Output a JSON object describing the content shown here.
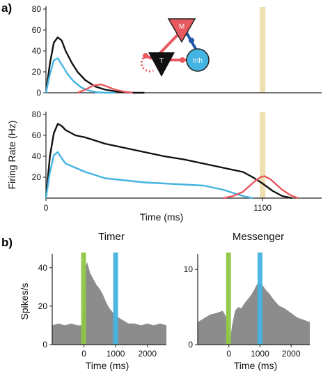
{
  "colors": {
    "black": "#111111",
    "blue": "#44b4e2",
    "red": "#e8585c",
    "tan": "#eee0b0",
    "green": "#8fc645",
    "gray": "#8c8c8c",
    "axis": "#222222"
  },
  "labels": {
    "panel_a": "a)",
    "panel_b": "b)",
    "ylabel_a": "Firing Rate (Hz)",
    "xlabel_a": "Time (ms)",
    "title_timer": "Timer",
    "title_messenger": "Messenger",
    "ylabel_b": "Spikes/s",
    "xlabel_timer": "Time (ms)",
    "xlabel_messenger": "Time (ms)"
  },
  "inset": {
    "node_m": "M",
    "node_t": "T",
    "node_inh": "Inh"
  },
  "chart_data": [
    {
      "type": "line",
      "id": "top",
      "ylabel": "Firing Rate (Hz)",
      "xlim": [
        0,
        1400
      ],
      "ylim": [
        0,
        80
      ],
      "yticks": [
        "0",
        "20",
        "40",
        "60",
        "80"
      ],
      "highlight_x": 1100,
      "series": [
        {
          "color": "black",
          "x": [
            0,
            20,
            40,
            60,
            80,
            100,
            130,
            160,
            200,
            250,
            300,
            350,
            400,
            450,
            500
          ],
          "y": [
            0,
            28,
            48,
            53,
            50,
            40,
            29,
            20,
            12,
            6,
            3,
            1.5,
            0.5,
            0,
            0
          ]
        },
        {
          "color": "blue",
          "x": [
            0,
            20,
            40,
            60,
            80,
            110,
            140,
            180,
            220,
            260,
            300,
            350
          ],
          "y": [
            0,
            18,
            31,
            33,
            27,
            18,
            11,
            5,
            2,
            0.5,
            0,
            0
          ]
        },
        {
          "color": "red",
          "x": [
            160,
            200,
            240,
            280,
            310,
            350,
            400,
            440
          ],
          "y": [
            0,
            3,
            7,
            8,
            6,
            3,
            1,
            0
          ]
        }
      ]
    },
    {
      "type": "line",
      "id": "bottom",
      "xlim": [
        0,
        1400
      ],
      "ylim": [
        0,
        80
      ],
      "yticks": [
        "20",
        "40",
        "60",
        "80"
      ],
      "xticks": [
        {
          "x": 0,
          "label": "0"
        },
        {
          "x": 1100,
          "label": "1100"
        }
      ],
      "highlight_x": 1100,
      "series": [
        {
          "color": "black",
          "x": [
            0,
            20,
            40,
            60,
            80,
            100,
            150,
            200,
            300,
            400,
            500,
            600,
            700,
            800,
            900,
            1000,
            1050,
            1100,
            1150,
            1200,
            1250
          ],
          "y": [
            0,
            40,
            62,
            71,
            69,
            65,
            60,
            58,
            52,
            48,
            44,
            40,
            37,
            33,
            29,
            25,
            20,
            14,
            7,
            2,
            0
          ]
        },
        {
          "color": "blue",
          "x": [
            0,
            20,
            40,
            60,
            80,
            100,
            150,
            200,
            300,
            400,
            500,
            600,
            700,
            800,
            900,
            950,
            1000,
            1050
          ],
          "y": [
            0,
            25,
            41,
            44,
            38,
            33,
            29,
            25,
            19,
            17,
            15,
            14,
            13,
            12,
            8,
            5,
            2,
            0
          ]
        },
        {
          "color": "red",
          "x": [
            900,
            950,
            1000,
            1030,
            1060,
            1090,
            1110,
            1140,
            1170,
            1200,
            1240,
            1280
          ],
          "y": [
            0,
            2,
            6,
            11,
            16,
            20,
            21,
            18,
            13,
            8,
            3,
            0
          ]
        }
      ]
    },
    {
      "type": "area",
      "id": "timer",
      "title": "Timer",
      "ylabel": "Spikes/s",
      "xlabel": "Time (ms)",
      "xlim": [
        -1000,
        2600
      ],
      "ylim": [
        0,
        45
      ],
      "yticks": [
        0,
        20,
        40
      ],
      "xticks": [
        0,
        1000,
        2000
      ],
      "green_x": 0,
      "blue_x": 1000,
      "x": [
        -1000,
        -800,
        -600,
        -400,
        -200,
        -50,
        0,
        50,
        100,
        150,
        200,
        300,
        400,
        500,
        600,
        700,
        800,
        900,
        1000,
        1100,
        1200,
        1300,
        1400,
        1600,
        1800,
        2000,
        2200,
        2400,
        2600
      ],
      "y": [
        10,
        11,
        10,
        11,
        10,
        10,
        24,
        40,
        43,
        40,
        37,
        34,
        31,
        29,
        26,
        22,
        19,
        17,
        15,
        14,
        13,
        12,
        11,
        11,
        10,
        11,
        10,
        11,
        10
      ]
    },
    {
      "type": "area",
      "id": "messenger",
      "title": "Messenger",
      "xlabel": "Time (ms)",
      "xlim": [
        -1000,
        2600
      ],
      "ylim": [
        0,
        11.5
      ],
      "yticks": [
        0,
        10
      ],
      "xticks": [
        0,
        1000,
        2000
      ],
      "green_x": 0,
      "blue_x": 1000,
      "x": [
        -1000,
        -800,
        -600,
        -400,
        -200,
        -100,
        0,
        50,
        100,
        200,
        300,
        400,
        500,
        600,
        700,
        800,
        900,
        1000,
        1100,
        1200,
        1300,
        1400,
        1600,
        1800,
        2000,
        2200,
        2400,
        2600
      ],
      "y": [
        3,
        3.5,
        4,
        4.2,
        4.5,
        3.8,
        1.2,
        0.8,
        2.5,
        4.5,
        5,
        4.8,
        5.5,
        6,
        6.5,
        7.2,
        8,
        8.3,
        7.8,
        7.2,
        6.8,
        6.2,
        5.2,
        4.8,
        4.2,
        3.6,
        3.3,
        3
      ]
    }
  ]
}
